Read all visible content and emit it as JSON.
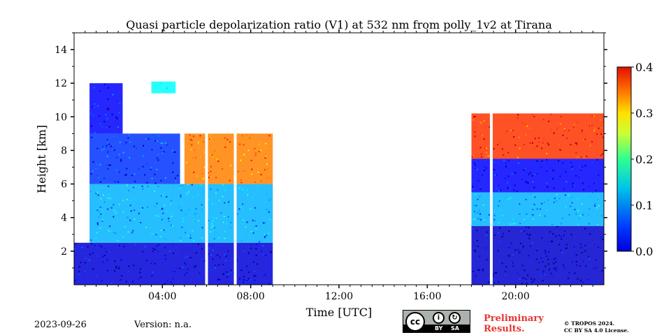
{
  "chart_data": {
    "type": "heatmap",
    "title": "Quasi particle depolarization ratio (V1) at 532 nm from polly_1v2 at Tirana",
    "xlabel": "Time [UTC]",
    "ylabel": "Height [km]",
    "xlim": [
      0,
      24
    ],
    "ylim": [
      0,
      15
    ],
    "xticks": [
      {
        "value": 4,
        "label": "04:00"
      },
      {
        "value": 8,
        "label": "08:00"
      },
      {
        "value": 12,
        "label": "12:00"
      },
      {
        "value": 16,
        "label": "16:00"
      },
      {
        "value": 20,
        "label": "20:00"
      }
    ],
    "yticks": [
      {
        "value": 2,
        "label": "2"
      },
      {
        "value": 4,
        "label": "4"
      },
      {
        "value": 6,
        "label": "6"
      },
      {
        "value": 8,
        "label": "8"
      },
      {
        "value": 10,
        "label": "10"
      },
      {
        "value": 12,
        "label": "12"
      },
      {
        "value": 14,
        "label": "14"
      }
    ],
    "colorbar": {
      "range": [
        0,
        0.4
      ],
      "ticks": [
        {
          "value": 0.0,
          "label": "0.0"
        },
        {
          "value": 0.1,
          "label": "0.1"
        },
        {
          "value": 0.2,
          "label": "0.2"
        },
        {
          "value": 0.3,
          "label": "0.3"
        },
        {
          "value": 0.4,
          "label": "0.4"
        }
      ],
      "colormap": "jet"
    },
    "measurement_periods": [
      {
        "start_utc": 0.0,
        "end_utc": 9.0
      },
      {
        "start_utc": 18.0,
        "end_utc": 24.0
      }
    ],
    "data_gaps_utc": [
      6.0,
      7.3,
      18.9
    ],
    "layers": [
      {
        "t0": 0.0,
        "t1": 9.0,
        "h0": 0.0,
        "h1": 2.5,
        "value": 0.035
      },
      {
        "t0": 0.7,
        "t1": 9.0,
        "h0": 2.5,
        "h1": 6.0,
        "value": 0.12
      },
      {
        "t0": 0.7,
        "t1": 4.8,
        "h0": 6.0,
        "h1": 9.0,
        "value": 0.07
      },
      {
        "t0": 0.7,
        "t1": 2.2,
        "h0": 9.0,
        "h1": 12.0,
        "value": 0.05
      },
      {
        "t0": 3.5,
        "t1": 4.6,
        "h0": 11.4,
        "h1": 12.1,
        "value": 0.15
      },
      {
        "t0": 5.0,
        "t1": 9.0,
        "h0": 6.0,
        "h1": 9.0,
        "value": 0.3
      },
      {
        "t0": 18.0,
        "t1": 24.0,
        "h0": 0.0,
        "h1": 3.5,
        "value": 0.03
      },
      {
        "t0": 18.0,
        "t1": 24.0,
        "h0": 3.5,
        "h1": 5.5,
        "value": 0.12
      },
      {
        "t0": 18.0,
        "t1": 24.0,
        "h0": 5.5,
        "h1": 7.5,
        "value": 0.05
      },
      {
        "t0": 18.0,
        "t1": 24.0,
        "h0": 7.5,
        "h1": 10.2,
        "value": 0.33
      }
    ],
    "grid": false
  },
  "footer": {
    "date": "2023-09-26",
    "version": "Version: n.a.",
    "preliminary_line1": "Preliminary",
    "preliminary_line2": "Results.",
    "copyright_line1": "© TROPOS 2024.",
    "copyright_line2": "CC BY SA 4.0 License.",
    "cc_label": "cc",
    "by_label": "BY",
    "sa_label": "SA"
  },
  "colors": {
    "preliminary": "#e8352e",
    "badge": "#aab2ab"
  }
}
